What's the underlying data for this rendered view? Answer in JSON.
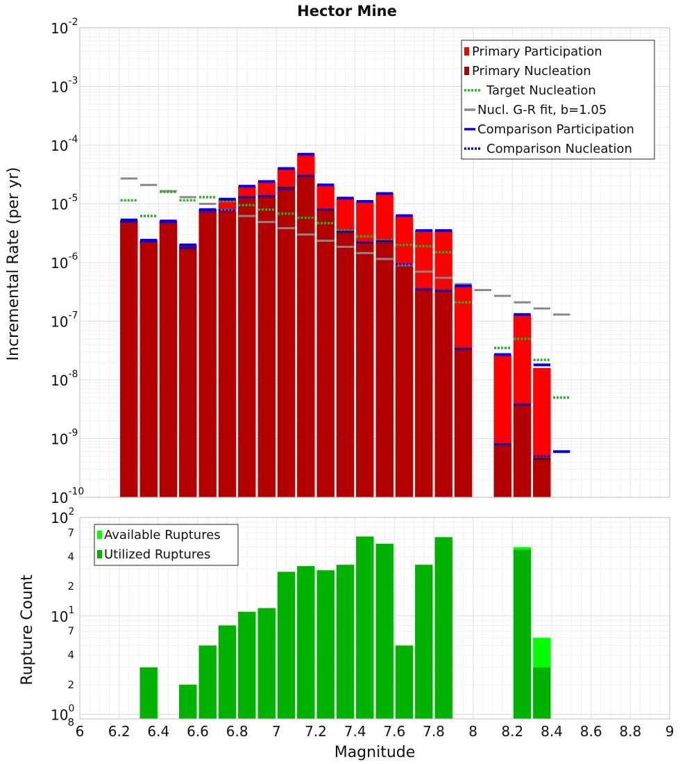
{
  "chart_data": [
    {
      "type": "bar",
      "title": "Hector Mine",
      "xlabel": "Magnitude",
      "ylabel": "Incremental Rate (per yr)",
      "yscale": "log",
      "xlim": [
        6,
        9
      ],
      "ylim": [
        1e-10,
        0.01
      ],
      "bin_width": 0.1,
      "grid": true,
      "legend_position": "top-right",
      "x_ticks": [
        "6",
        "6.2",
        "6.4",
        "6.6",
        "6.8",
        "7",
        "7.2",
        "7.4",
        "7.6",
        "7.8",
        "8",
        "8.2",
        "8.4",
        "8.6",
        "8.8",
        "9"
      ],
      "y_ticks": [
        {
          "value": 0.01,
          "base": "10",
          "exp": "-2"
        },
        {
          "value": 0.001,
          "base": "10",
          "exp": "-3"
        },
        {
          "value": 0.0001,
          "base": "10",
          "exp": "-4"
        },
        {
          "value": 1e-05,
          "base": "10",
          "exp": "-5"
        },
        {
          "value": 1e-06,
          "base": "10",
          "exp": "-6"
        },
        {
          "value": 1e-07,
          "base": "10",
          "exp": "-7"
        },
        {
          "value": 1e-08,
          "base": "10",
          "exp": "-8"
        },
        {
          "value": 1e-09,
          "base": "10",
          "exp": "-9"
        },
        {
          "value": 1e-10,
          "base": "10",
          "exp": "-10"
        }
      ],
      "colors": {
        "primary_participation": "#ff0000",
        "primary_nucleation": "#b30000",
        "target_nucleation": "#22b722",
        "gr_fit": "#888888",
        "comparison": "#0000ee",
        "nucleation_marker": "#1a1a1a"
      },
      "series": [
        {
          "name": "Primary Participation",
          "style": "bar",
          "points": [
            [
              6.25,
              5.3e-06
            ],
            [
              6.35,
              2.4e-06
            ],
            [
              6.45,
              5.1e-06
            ],
            [
              6.55,
              2e-06
            ],
            [
              6.65,
              8e-06
            ],
            [
              6.75,
              1.2e-05
            ],
            [
              6.85,
              2e-05
            ],
            [
              6.95,
              2.4e-05
            ],
            [
              7.05,
              4e-05
            ],
            [
              7.15,
              7e-05
            ],
            [
              7.25,
              2.1e-05
            ],
            [
              7.35,
              1.25e-05
            ],
            [
              7.45,
              1.1e-05
            ],
            [
              7.55,
              1.5e-05
            ],
            [
              7.65,
              6.3e-06
            ],
            [
              7.75,
              3.5e-06
            ],
            [
              7.85,
              3.5e-06
            ],
            [
              7.95,
              4e-07
            ],
            [
              8.15,
              2.7e-08
            ],
            [
              8.25,
              1.3e-07
            ],
            [
              8.35,
              1.6e-08
            ]
          ]
        },
        {
          "name": "Primary Nucleation",
          "style": "bar",
          "points": [
            [
              6.25,
              5e-06
            ],
            [
              6.35,
              2.3e-06
            ],
            [
              6.45,
              4.9e-06
            ],
            [
              6.55,
              1.8e-06
            ],
            [
              6.65,
              7.8e-06
            ],
            [
              6.75,
              8e-06
            ],
            [
              6.85,
              1.3e-05
            ],
            [
              6.95,
              1.35e-05
            ],
            [
              7.05,
              1.9e-05
            ],
            [
              7.15,
              3e-05
            ],
            [
              7.25,
              8e-06
            ],
            [
              7.35,
              3.4e-06
            ],
            [
              7.45,
              2.2e-06
            ],
            [
              7.55,
              2.3e-06
            ],
            [
              7.65,
              9e-07
            ],
            [
              7.75,
              3.5e-07
            ],
            [
              7.85,
              3.3e-07
            ],
            [
              7.95,
              3.4e-08
            ],
            [
              8.15,
              8e-10
            ],
            [
              8.25,
              3.8e-09
            ],
            [
              8.35,
              4.5e-10
            ]
          ]
        },
        {
          "name": "Target Nucleation",
          "style": "dotted-step",
          "points": [
            [
              6.25,
              1.15e-05
            ],
            [
              6.35,
              6.2e-06
            ],
            [
              6.45,
              1.6e-05
            ],
            [
              6.55,
              1.15e-05
            ],
            [
              6.65,
              1.3e-05
            ],
            [
              6.75,
              1.1e-05
            ],
            [
              6.85,
              9.5e-06
            ],
            [
              6.95,
              8e-06
            ],
            [
              7.05,
              6.8e-06
            ],
            [
              7.15,
              5.8e-06
            ],
            [
              7.25,
              4.7e-06
            ],
            [
              7.35,
              3.5e-06
            ],
            [
              7.45,
              2.8e-06
            ],
            [
              7.55,
              2.4e-06
            ],
            [
              7.65,
              2e-06
            ],
            [
              7.75,
              1.9e-06
            ],
            [
              7.85,
              1.5e-06
            ],
            [
              7.95,
              2.1e-07
            ],
            [
              8.15,
              3.5e-08
            ],
            [
              8.25,
              5e-08
            ],
            [
              8.35,
              2.2e-08
            ],
            [
              8.45,
              5e-09
            ]
          ]
        },
        {
          "name": "Nucl. G-R fit, b=1.05",
          "style": "solid-step",
          "points": [
            [
              6.25,
              2.7e-05
            ],
            [
              6.35,
              2.1e-05
            ],
            [
              6.45,
              1.65e-05
            ],
            [
              6.55,
              1.3e-05
            ],
            [
              6.65,
              1e-05
            ],
            [
              6.75,
              7.9e-06
            ],
            [
              6.85,
              6.2e-06
            ],
            [
              6.95,
              4.9e-06
            ],
            [
              7.05,
              3.85e-06
            ],
            [
              7.15,
              3e-06
            ],
            [
              7.25,
              2.35e-06
            ],
            [
              7.35,
              1.85e-06
            ],
            [
              7.45,
              1.45e-06
            ],
            [
              7.55,
              1.15e-06
            ],
            [
              7.65,
              9e-07
            ],
            [
              7.75,
              7e-07
            ],
            [
              7.85,
              5.5e-07
            ],
            [
              7.95,
              4.3e-07
            ],
            [
              8.05,
              3.4e-07
            ],
            [
              8.15,
              2.7e-07
            ],
            [
              8.25,
              2.1e-07
            ],
            [
              8.35,
              1.65e-07
            ],
            [
              8.45,
              1.3e-07
            ]
          ]
        },
        {
          "name": "Comparison Participation",
          "style": "solid-step",
          "points": [
            [
              6.25,
              5.3e-06
            ],
            [
              6.35,
              2.4e-06
            ],
            [
              6.45,
              5.1e-06
            ],
            [
              6.55,
              2e-06
            ],
            [
              6.65,
              8e-06
            ],
            [
              6.75,
              1.2e-05
            ],
            [
              6.85,
              2e-05
            ],
            [
              6.95,
              2.4e-05
            ],
            [
              7.05,
              4e-05
            ],
            [
              7.15,
              7e-05
            ],
            [
              7.25,
              2.1e-05
            ],
            [
              7.35,
              1.25e-05
            ],
            [
              7.45,
              1.1e-05
            ],
            [
              7.55,
              1.5e-05
            ],
            [
              7.65,
              6.3e-06
            ],
            [
              7.75,
              3.5e-06
            ],
            [
              7.85,
              3.5e-06
            ],
            [
              7.95,
              4e-07
            ],
            [
              8.15,
              2.7e-08
            ],
            [
              8.25,
              1.3e-07
            ],
            [
              8.35,
              1.8e-08
            ],
            [
              8.45,
              6e-10
            ]
          ]
        },
        {
          "name": "Comparison Nucleation",
          "style": "dotted-step",
          "points": [
            [
              6.25,
              5e-06
            ],
            [
              6.35,
              2.3e-06
            ],
            [
              6.45,
              4.9e-06
            ],
            [
              6.55,
              1.75e-06
            ],
            [
              6.65,
              7.5e-06
            ],
            [
              6.75,
              7.8e-06
            ],
            [
              6.85,
              1.3e-05
            ],
            [
              6.95,
              1.35e-05
            ],
            [
              7.05,
              1.8e-05
            ],
            [
              7.15,
              3e-05
            ],
            [
              7.25,
              8e-06
            ],
            [
              7.35,
              3.3e-06
            ],
            [
              7.45,
              2.2e-06
            ],
            [
              7.55,
              2.3e-06
            ],
            [
              7.65,
              9.3e-07
            ],
            [
              7.75,
              3.5e-07
            ],
            [
              7.85,
              3.3e-07
            ],
            [
              7.95,
              3.4e-08
            ],
            [
              8.15,
              8e-10
            ],
            [
              8.25,
              3.8e-09
            ],
            [
              8.35,
              5e-10
            ]
          ]
        }
      ]
    },
    {
      "type": "bar",
      "title": "",
      "xlabel": "Magnitude",
      "ylabel": "Rupture Count",
      "yscale": "log",
      "xlim": [
        6,
        9
      ],
      "ylim": [
        0.9,
        100
      ],
      "bin_width": 0.1,
      "grid": true,
      "legend_position": "top-left",
      "x_ticks": [
        "6",
        "6.2",
        "6.4",
        "6.6",
        "6.8",
        "7",
        "7.2",
        "7.4",
        "7.6",
        "7.8",
        "8",
        "8.2",
        "8.4",
        "8.6",
        "8.8",
        "9"
      ],
      "y_ticks": [
        {
          "value": 100,
          "base": "10",
          "exp": "2"
        },
        {
          "value": 10,
          "base": "10",
          "exp": "1"
        },
        {
          "value": 1,
          "base": "10",
          "exp": "0"
        }
      ],
      "y_minor_ticks": [
        {
          "value": 70,
          "label": "7"
        },
        {
          "value": 40,
          "label": "4"
        },
        {
          "value": 20,
          "label": "2"
        },
        {
          "value": 7,
          "label": "7"
        },
        {
          "value": 4,
          "label": "4"
        },
        {
          "value": 2,
          "label": "2"
        },
        {
          "value": 0.8,
          "label": "8"
        }
      ],
      "colors": {
        "available": "#00ff00",
        "utilized": "#00b200"
      },
      "series": [
        {
          "name": "Available Ruptures",
          "style": "bar",
          "points": [
            [
              6.35,
              3
            ],
            [
              6.55,
              2
            ],
            [
              6.65,
              5
            ],
            [
              6.75,
              8
            ],
            [
              6.85,
              11
            ],
            [
              6.95,
              12
            ],
            [
              7.05,
              28
            ],
            [
              7.15,
              32
            ],
            [
              7.25,
              29
            ],
            [
              7.35,
              33
            ],
            [
              7.45,
              64
            ],
            [
              7.55,
              54
            ],
            [
              7.65,
              5
            ],
            [
              7.75,
              33
            ],
            [
              7.85,
              63
            ],
            [
              8.25,
              50
            ],
            [
              8.35,
              6
            ]
          ]
        },
        {
          "name": "Utilized Ruptures",
          "style": "bar",
          "points": [
            [
              6.35,
              3
            ],
            [
              6.55,
              2
            ],
            [
              6.65,
              5
            ],
            [
              6.75,
              8
            ],
            [
              6.85,
              11
            ],
            [
              6.95,
              12
            ],
            [
              7.05,
              28
            ],
            [
              7.15,
              32
            ],
            [
              7.25,
              29
            ],
            [
              7.35,
              33
            ],
            [
              7.45,
              64
            ],
            [
              7.55,
              54
            ],
            [
              7.65,
              5
            ],
            [
              7.75,
              33
            ],
            [
              7.85,
              63
            ],
            [
              8.25,
              47
            ],
            [
              8.35,
              3
            ]
          ]
        }
      ]
    }
  ]
}
